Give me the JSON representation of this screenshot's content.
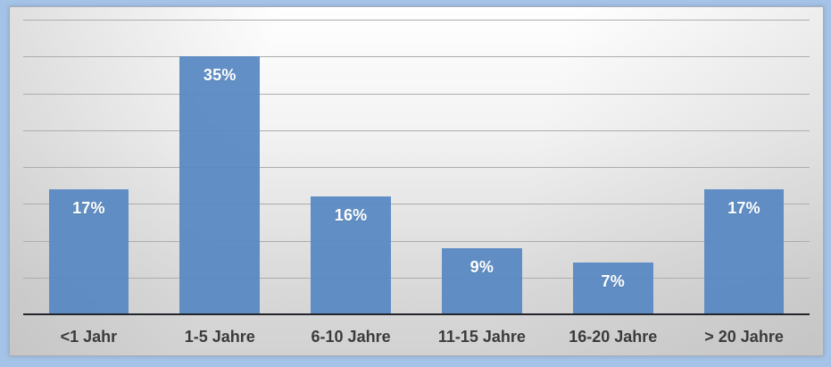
{
  "chart_data": {
    "type": "bar",
    "title": "",
    "xlabel": "",
    "ylabel": "",
    "categories": [
      "<1 Jahr",
      "1-5 Jahre",
      "6-10 Jahre",
      "11-15 Jahre",
      "16-20 Jahre",
      "> 20 Jahre"
    ],
    "values": [
      17,
      35,
      16,
      9,
      7,
      17
    ],
    "value_labels": [
      "17%",
      "35%",
      "16%",
      "9%",
      "7%",
      "17%"
    ],
    "unit": "%",
    "ylim": [
      0,
      40
    ],
    "gridline_step": 5,
    "grid": true,
    "legend_position": "none",
    "colors": {
      "bar": "rgba(88,137,194,0.94)",
      "bar_solid": "#6190c8",
      "value_label": "#ffffff",
      "category_label": "#3b3b3b",
      "gridline": "#adadad",
      "axis_line": "#23252b",
      "frame_background": "#a5c3e6",
      "panel_gradient_light": "#ffffff",
      "panel_gradient_dark": "#d2d2d2"
    }
  }
}
